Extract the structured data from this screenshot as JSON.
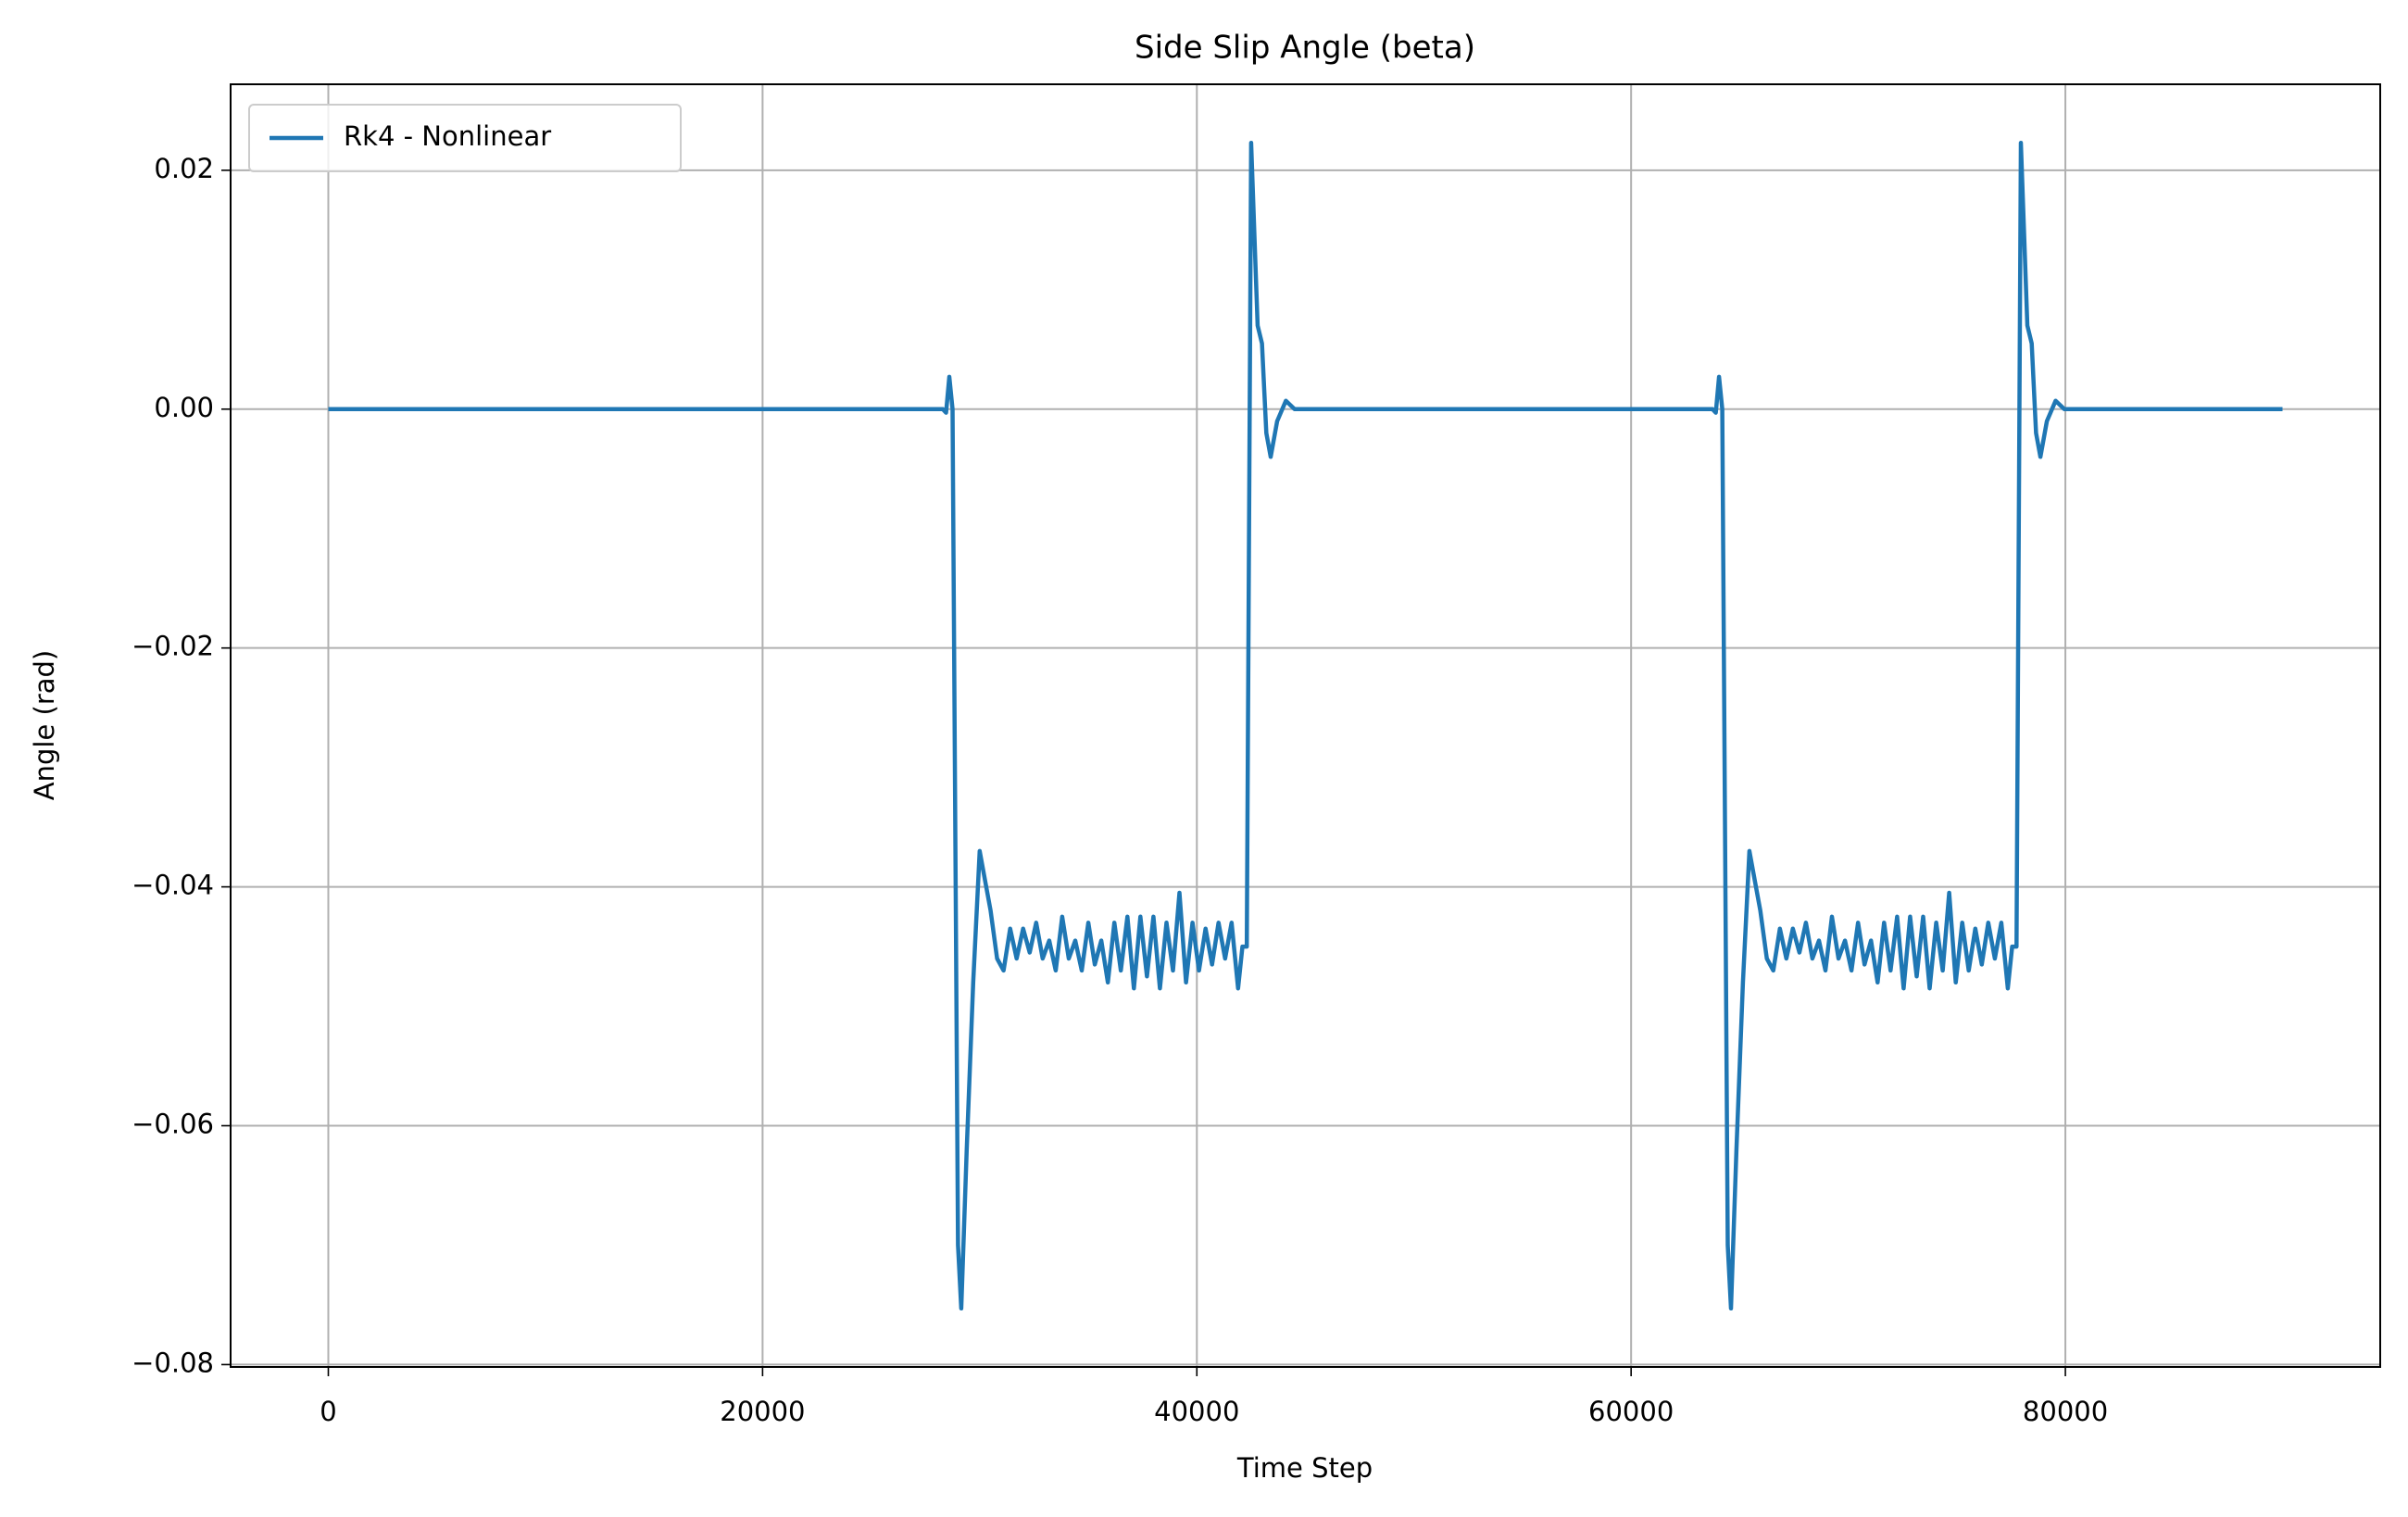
{
  "chart_data": {
    "type": "line",
    "title": "Side Slip Angle (beta)",
    "xlabel": "Time Step",
    "ylabel": "Angle (rad)",
    "xlim": [
      -4500,
      94500
    ],
    "ylim": [
      -0.0802,
      0.0272
    ],
    "xticks": [
      0,
      20000,
      40000,
      60000,
      80000
    ],
    "yticks": [
      {
        "value": -0.08,
        "label": "−0.08"
      },
      {
        "value": -0.06,
        "label": "−0.06"
      },
      {
        "value": -0.04,
        "label": "−0.04"
      },
      {
        "value": -0.02,
        "label": "−0.02"
      },
      {
        "value": 0,
        "label": "0.00"
      },
      0.02
    ],
    "grid": true,
    "legend": "upper left",
    "x": [
      0,
      28300,
      28450,
      28600,
      28750,
      29000,
      29150,
      29400,
      29700,
      30000,
      30200,
      30500,
      30800,
      31100,
      31400,
      31700,
      32000,
      32300,
      32600,
      32900,
      33200,
      33500,
      33800,
      34100,
      34400,
      34700,
      35000,
      35300,
      35600,
      35900,
      36200,
      36500,
      36800,
      37100,
      37400,
      37700,
      38000,
      38300,
      38600,
      38900,
      39200,
      39500,
      39800,
      40100,
      40400,
      40700,
      41000,
      41300,
      41600,
      41900,
      42100,
      42300,
      42500,
      42800,
      43000,
      43200,
      43400,
      43700,
      44100,
      44500,
      45000,
      63750,
      63900,
      64050,
      64200,
      64450,
      64600,
      64850,
      65150,
      65450,
      65650,
      65950,
      66250,
      66550,
      66850,
      67150,
      67450,
      67750,
      68050,
      68350,
      68650,
      68950,
      69250,
      69550,
      69850,
      70150,
      70450,
      70750,
      71050,
      71350,
      71650,
      71950,
      72250,
      72550,
      72850,
      73150,
      73450,
      73750,
      74050,
      74350,
      74650,
      74950,
      75250,
      75550,
      75850,
      76150,
      76450,
      76750,
      77050,
      77350,
      77550,
      77750,
      77950,
      78250,
      78450,
      78650,
      78850,
      79150,
      79550,
      79950,
      80450,
      90000
    ],
    "series": [
      {
        "name": "Rk4 - Nonlinear",
        "color": "#1f77b4",
        "values": [
          0,
          0,
          -0.0003,
          0.0027,
          0,
          -0.07,
          -0.0753,
          -0.062,
          -0.048,
          -0.037,
          -0.039,
          -0.042,
          -0.046,
          -0.047,
          -0.0435,
          -0.046,
          -0.0435,
          -0.0455,
          -0.043,
          -0.046,
          -0.0445,
          -0.047,
          -0.0425,
          -0.046,
          -0.0445,
          -0.047,
          -0.043,
          -0.0465,
          -0.0445,
          -0.048,
          -0.043,
          -0.047,
          -0.0425,
          -0.0485,
          -0.0425,
          -0.0475,
          -0.0425,
          -0.0485,
          -0.043,
          -0.047,
          -0.0405,
          -0.048,
          -0.043,
          -0.047,
          -0.0435,
          -0.0465,
          -0.043,
          -0.046,
          -0.043,
          -0.0485,
          -0.045,
          -0.045,
          0.0223,
          0.007,
          0.0055,
          -0.002,
          -0.004,
          -0.001,
          0.0007,
          0,
          0,
          0,
          -0.0003,
          0.0027,
          0,
          -0.07,
          -0.0753,
          -0.062,
          -0.048,
          -0.037,
          -0.039,
          -0.042,
          -0.046,
          -0.047,
          -0.0435,
          -0.046,
          -0.0435,
          -0.0455,
          -0.043,
          -0.046,
          -0.0445,
          -0.047,
          -0.0425,
          -0.046,
          -0.0445,
          -0.047,
          -0.043,
          -0.0465,
          -0.0445,
          -0.048,
          -0.043,
          -0.047,
          -0.0425,
          -0.0485,
          -0.0425,
          -0.0475,
          -0.0425,
          -0.0485,
          -0.043,
          -0.047,
          -0.0405,
          -0.048,
          -0.043,
          -0.047,
          -0.0435,
          -0.0465,
          -0.043,
          -0.046,
          -0.043,
          -0.0485,
          -0.045,
          -0.045,
          0.0223,
          0.007,
          0.0055,
          -0.002,
          -0.004,
          -0.001,
          0.0007,
          0,
          0,
          0
        ]
      }
    ]
  }
}
